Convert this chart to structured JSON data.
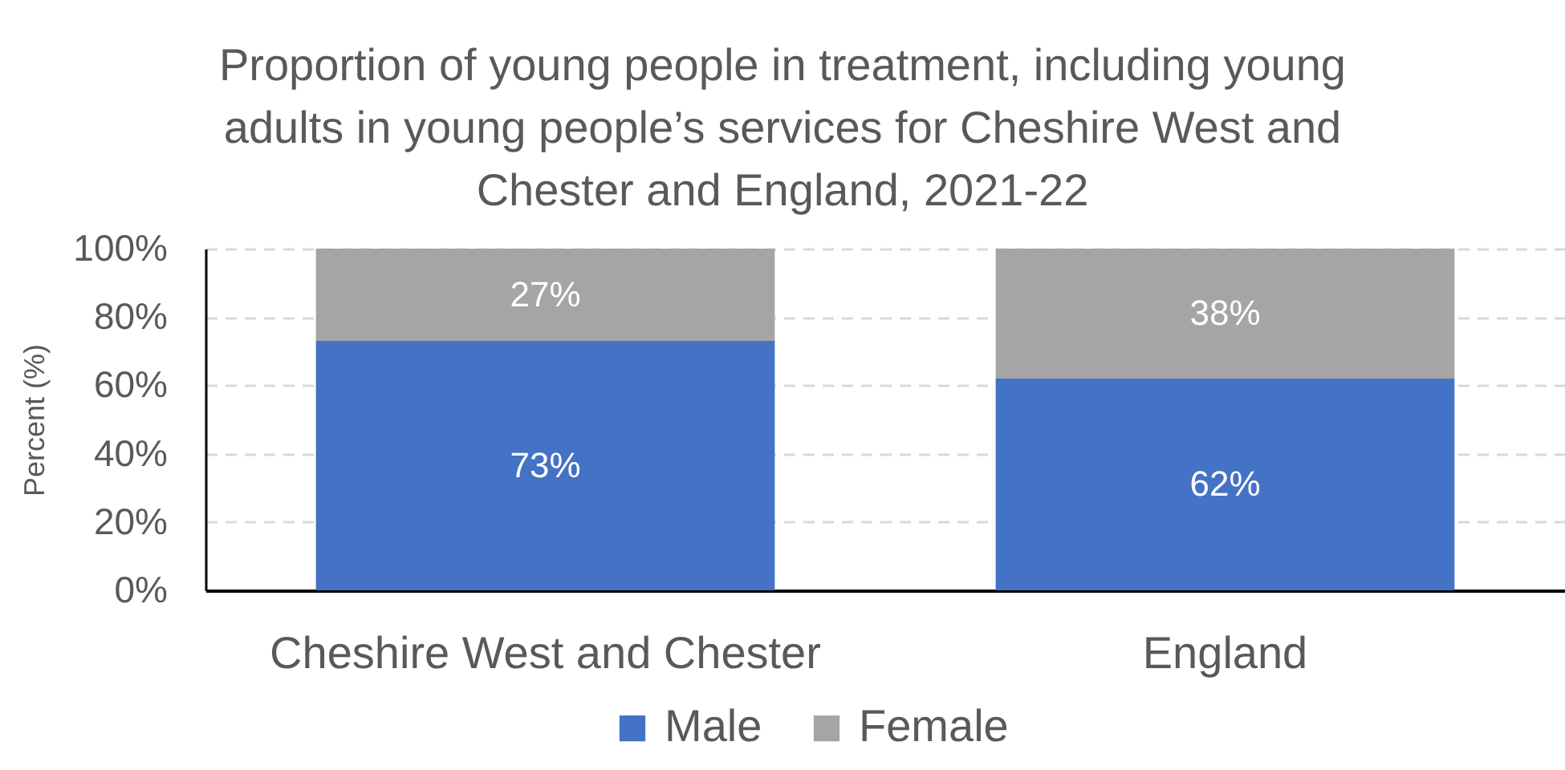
{
  "chart_data": {
    "type": "bar",
    "title": "Proportion of young people in treatment, including young adults in young people’s services for Cheshire West and Chester and England, 2021-22",
    "ylabel": "Percent (%)",
    "categories": [
      "Cheshire West and Chester",
      "England"
    ],
    "stacked": true,
    "series": [
      {
        "name": "Male",
        "color": "#4472c4",
        "values": [
          73,
          62
        ],
        "value_labels": [
          "73%",
          "62%"
        ]
      },
      {
        "name": "Female",
        "color": "#a5a5a5",
        "values": [
          27,
          38
        ],
        "value_labels": [
          "27%",
          "38%"
        ]
      }
    ],
    "ylim": [
      0,
      100
    ],
    "yticks": [
      {
        "value": 0,
        "label": "0%"
      },
      {
        "value": 20,
        "label": "20%"
      },
      {
        "value": 40,
        "label": "40%"
      },
      {
        "value": 60,
        "label": "60%"
      },
      {
        "value": 80,
        "label": "80%"
      },
      {
        "value": 100,
        "label": "100%"
      }
    ],
    "grid": "y",
    "legend": "bottom"
  }
}
